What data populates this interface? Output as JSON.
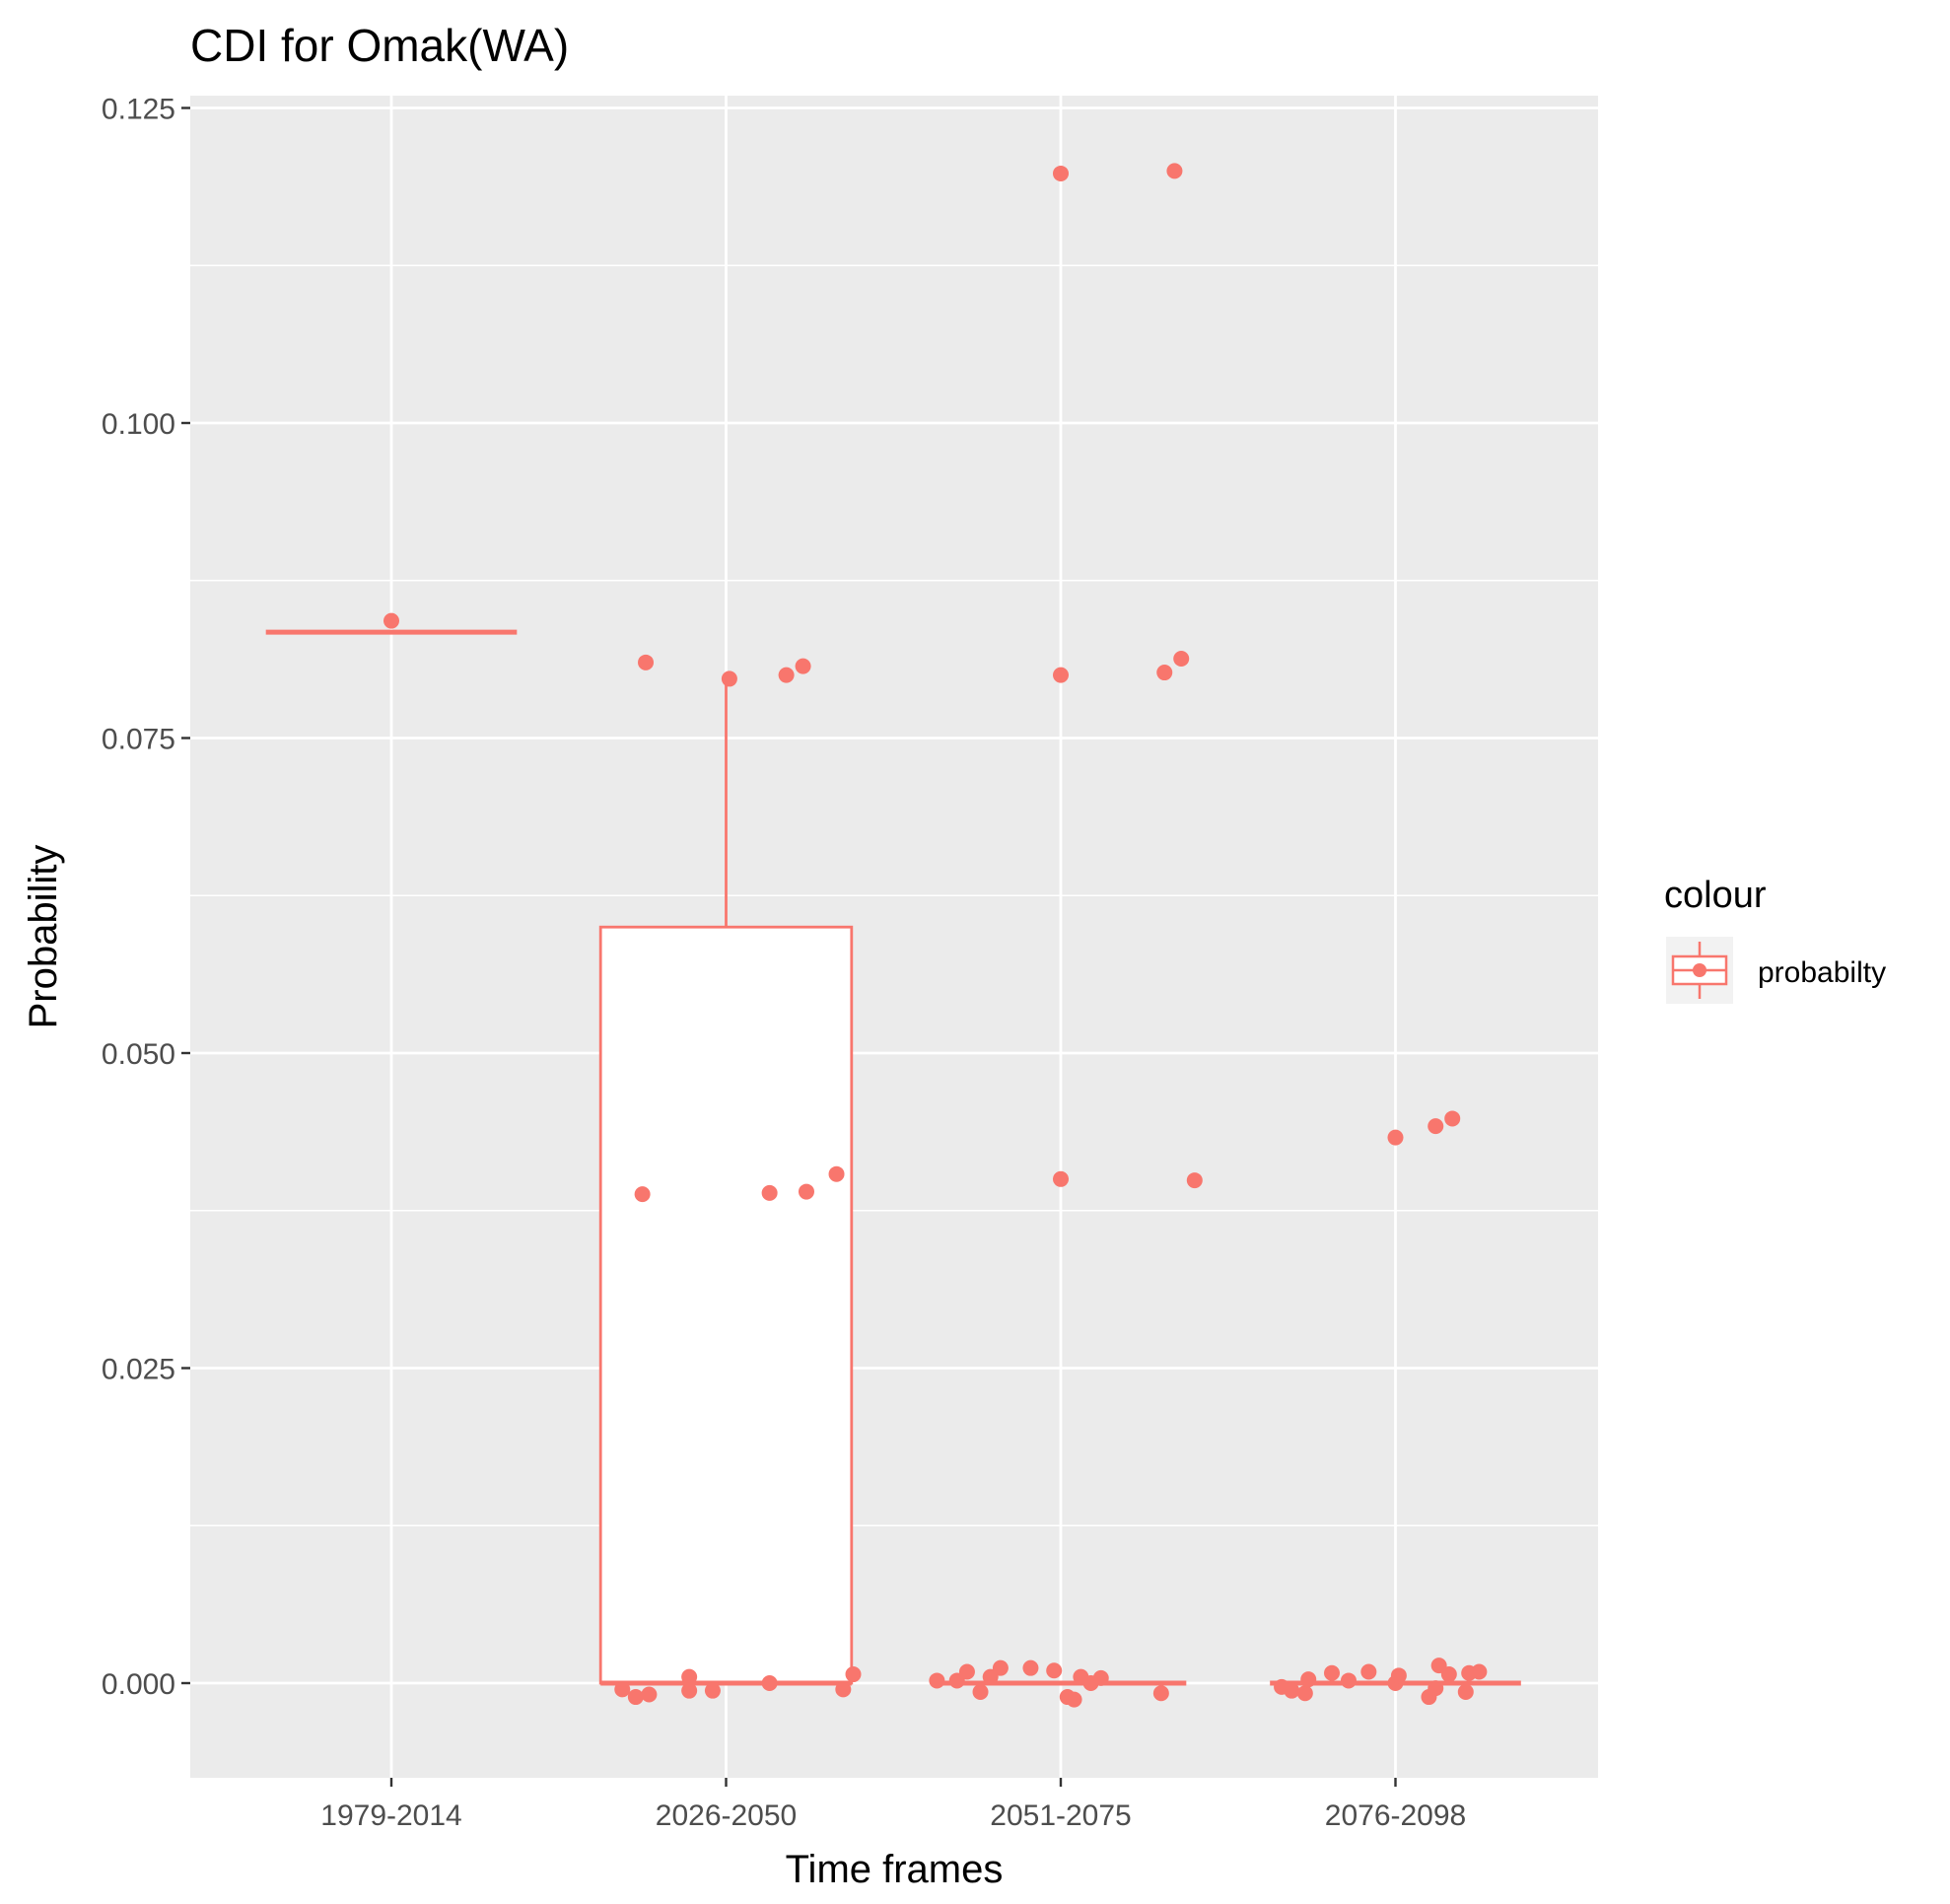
{
  "chart_data": {
    "type": "boxplot",
    "title": "CDI for Omak(WA)",
    "xlabel": "Time frames",
    "ylabel": "Probability",
    "ylim": [
      -0.0073,
      0.1265
    ],
    "yticks": [
      0.0,
      0.025,
      0.05,
      0.075,
      0.1,
      0.125
    ],
    "ytick_labels": [
      "0.000",
      "0.025",
      "0.050",
      "0.075",
      "0.100",
      "0.125"
    ],
    "categories": [
      "1979-2014",
      "2026-2050",
      "2051-2075",
      "2076-2098"
    ],
    "grid": true,
    "color": "#f8766d",
    "panel_background": "#ebebeb",
    "legend": {
      "title": "colour",
      "entries": [
        "probabilty"
      ],
      "placement": "right"
    },
    "boxes": [
      {
        "category": "1979-2014",
        "lower_whisker": 0.0834,
        "q1": 0.0834,
        "median": 0.0834,
        "q3": 0.0834,
        "upper_whisker": 0.0834
      },
      {
        "category": "2026-2050",
        "lower_whisker": 0.0,
        "q1": 0.0,
        "median": 0.0,
        "q3": 0.06,
        "upper_whisker": 0.0797
      },
      {
        "category": "2051-2075",
        "lower_whisker": 0.0,
        "q1": 0.0,
        "median": 0.0,
        "q3": 0.0,
        "upper_whisker": 0.0
      },
      {
        "category": "2076-2098",
        "lower_whisker": 0.0,
        "q1": 0.0,
        "median": 0.0,
        "q3": 0.0,
        "upper_whisker": 0.0
      }
    ],
    "points": [
      {
        "category": "1979-2014",
        "jitter": 0.0,
        "value": 0.0843
      },
      {
        "category": "2026-2050",
        "jitter": -0.24,
        "value": 0.081
      },
      {
        "category": "2026-2050",
        "jitter": 0.01,
        "value": 0.0797
      },
      {
        "category": "2026-2050",
        "jitter": 0.18,
        "value": 0.08
      },
      {
        "category": "2026-2050",
        "jitter": 0.23,
        "value": 0.0807
      },
      {
        "category": "2026-2050",
        "jitter": -0.25,
        "value": 0.0388
      },
      {
        "category": "2026-2050",
        "jitter": 0.13,
        "value": 0.0389
      },
      {
        "category": "2026-2050",
        "jitter": 0.24,
        "value": 0.039
      },
      {
        "category": "2026-2050",
        "jitter": 0.33,
        "value": 0.0404
      },
      {
        "category": "2026-2050",
        "jitter": -0.31,
        "value": -0.0005
      },
      {
        "category": "2026-2050",
        "jitter": -0.27,
        "value": -0.0011
      },
      {
        "category": "2026-2050",
        "jitter": -0.23,
        "value": -0.0009
      },
      {
        "category": "2026-2050",
        "jitter": -0.11,
        "value": 0.0005
      },
      {
        "category": "2026-2050",
        "jitter": -0.11,
        "value": -0.0006
      },
      {
        "category": "2026-2050",
        "jitter": -0.04,
        "value": -0.0006
      },
      {
        "category": "2026-2050",
        "jitter": 0.13,
        "value": 0.0
      },
      {
        "category": "2026-2050",
        "jitter": 0.35,
        "value": -0.0005
      },
      {
        "category": "2026-2050",
        "jitter": 0.38,
        "value": 0.0007
      },
      {
        "category": "2051-2075",
        "jitter": 0.0,
        "value": 0.1198
      },
      {
        "category": "2051-2075",
        "jitter": 0.34,
        "value": 0.12
      },
      {
        "category": "2051-2075",
        "jitter": 0.0,
        "value": 0.08
      },
      {
        "category": "2051-2075",
        "jitter": 0.31,
        "value": 0.0802
      },
      {
        "category": "2051-2075",
        "jitter": 0.36,
        "value": 0.0813
      },
      {
        "category": "2051-2075",
        "jitter": 0.0,
        "value": 0.04
      },
      {
        "category": "2051-2075",
        "jitter": 0.4,
        "value": 0.0399
      },
      {
        "category": "2051-2075",
        "jitter": -0.37,
        "value": 0.0002
      },
      {
        "category": "2051-2075",
        "jitter": -0.31,
        "value": 0.0002
      },
      {
        "category": "2051-2075",
        "jitter": -0.28,
        "value": 0.0009
      },
      {
        "category": "2051-2075",
        "jitter": -0.24,
        "value": -0.0007
      },
      {
        "category": "2051-2075",
        "jitter": -0.21,
        "value": 0.0005
      },
      {
        "category": "2051-2075",
        "jitter": -0.18,
        "value": 0.0012
      },
      {
        "category": "2051-2075",
        "jitter": -0.09,
        "value": 0.0012
      },
      {
        "category": "2051-2075",
        "jitter": -0.02,
        "value": 0.001
      },
      {
        "category": "2051-2075",
        "jitter": 0.02,
        "value": -0.0011
      },
      {
        "category": "2051-2075",
        "jitter": 0.04,
        "value": -0.0013
      },
      {
        "category": "2051-2075",
        "jitter": 0.06,
        "value": 0.0005
      },
      {
        "category": "2051-2075",
        "jitter": 0.09,
        "value": 0.0
      },
      {
        "category": "2051-2075",
        "jitter": 0.12,
        "value": 0.0004
      },
      {
        "category": "2051-2075",
        "jitter": 0.3,
        "value": -0.0008
      },
      {
        "category": "2076-2098",
        "jitter": 0.0,
        "value": 0.0433
      },
      {
        "category": "2076-2098",
        "jitter": 0.12,
        "value": 0.0442
      },
      {
        "category": "2076-2098",
        "jitter": 0.17,
        "value": 0.0448
      },
      {
        "category": "2076-2098",
        "jitter": -0.34,
        "value": -0.0003
      },
      {
        "category": "2076-2098",
        "jitter": -0.31,
        "value": -0.0006
      },
      {
        "category": "2076-2098",
        "jitter": -0.27,
        "value": -0.0008
      },
      {
        "category": "2076-2098",
        "jitter": -0.26,
        "value": 0.0003
      },
      {
        "category": "2076-2098",
        "jitter": -0.19,
        "value": 0.0008
      },
      {
        "category": "2076-2098",
        "jitter": -0.14,
        "value": 0.0002
      },
      {
        "category": "2076-2098",
        "jitter": -0.08,
        "value": 0.0009
      },
      {
        "category": "2076-2098",
        "jitter": 0.0,
        "value": 0.0
      },
      {
        "category": "2076-2098",
        "jitter": 0.01,
        "value": 0.0006
      },
      {
        "category": "2076-2098",
        "jitter": 0.1,
        "value": -0.0011
      },
      {
        "category": "2076-2098",
        "jitter": 0.12,
        "value": -0.0004
      },
      {
        "category": "2076-2098",
        "jitter": 0.13,
        "value": 0.0014
      },
      {
        "category": "2076-2098",
        "jitter": 0.16,
        "value": 0.0007
      },
      {
        "category": "2076-2098",
        "jitter": 0.21,
        "value": -0.0007
      },
      {
        "category": "2076-2098",
        "jitter": 0.22,
        "value": 0.0008
      },
      {
        "category": "2076-2098",
        "jitter": 0.25,
        "value": 0.0009
      }
    ]
  }
}
